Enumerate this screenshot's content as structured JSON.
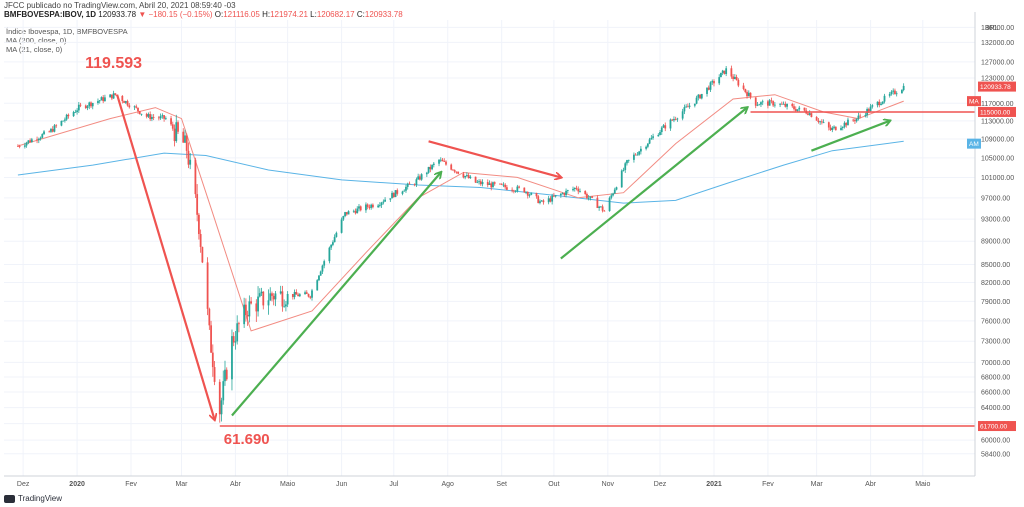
{
  "header": {
    "line1": "JFCC publicado no TradingView.com, Abril 20, 2021 08:59:40 -03",
    "symbol": "BMFBOVESPA:IBOV, 1D",
    "last": "120933.78",
    "arrow": "▼",
    "change": "−180.15 (−0.15%)",
    "o_label": "O:",
    "o_val": "121116.05",
    "h_label": "H:",
    "h_val": "121974.21",
    "l_label": "L:",
    "l_val": "120682.17",
    "c_label": "C:",
    "c_val": "120933.78"
  },
  "legend": {
    "title": "Índice Ibovespa, 1D, BMFBOVESPA",
    "ma1": "MA (200, close, 0)",
    "ma2": "MA (21, close, 0)"
  },
  "footer": {
    "brand": "TradingView"
  },
  "chart_data": {
    "type": "line",
    "title": "Índice Ibovespa, 1D, BMFBOVESPA",
    "y_unit": "BRL",
    "ylim": [
      57000,
      138000
    ],
    "y_ticks": [
      136000,
      132000,
      127000,
      123000,
      117000,
      113000,
      109000,
      105000,
      101000,
      97000,
      93000,
      89000,
      85000,
      82000,
      79000,
      76000,
      73000,
      70000,
      68000,
      66000,
      64000,
      62000,
      60000,
      58400
    ],
    "y_tick_labels": [
      "136000.00",
      "132000.00",
      "127000.00",
      "123000.00",
      "117000.00",
      "113000.00",
      "109000.00",
      "105000.00",
      "101000.00",
      "97000.00",
      "93000.00",
      "89000.00",
      "85000.00",
      "82000.00",
      "79000.00",
      "76000.00",
      "73000.00",
      "70000.00",
      "68000.00",
      "66000.00",
      "64000.00",
      "62000.00",
      "60000.00",
      "58400.00"
    ],
    "x_ticks": [
      "Dez",
      "2020",
      "Fev",
      "Mar",
      "Abr",
      "Maio",
      "Jun",
      "Jul",
      "Ago",
      "Set",
      "Out",
      "Nov",
      "Dez",
      "2021",
      "Fev",
      "Mar",
      "Abr",
      "Maio"
    ],
    "grid": true,
    "series": [
      {
        "name": "IBOV",
        "color_up": "#26a69a",
        "color_down": "#ef5350",
        "x": [
          "2019-11-28",
          "2019-12-16",
          "2020-01-02",
          "2020-01-23",
          "2020-02-10",
          "2020-02-21",
          "2020-03-04",
          "2020-03-11",
          "2020-03-17",
          "2020-03-23",
          "2020-03-30",
          "2020-04-08",
          "2020-04-22",
          "2020-05-14",
          "2020-06-03",
          "2020-06-22",
          "2020-07-13",
          "2020-07-27",
          "2020-08-17",
          "2020-09-14",
          "2020-09-24",
          "2020-10-14",
          "2020-10-30",
          "2020-11-12",
          "2020-11-30",
          "2020-12-21",
          "2021-01-08",
          "2021-01-25",
          "2021-02-05",
          "2021-02-24",
          "2021-03-09",
          "2021-03-24",
          "2021-04-05",
          "2021-04-20"
        ],
        "close": [
          107500,
          110500,
          116000,
          119000,
          114000,
          113500,
          107000,
          92000,
          74000,
          63600,
          73000,
          78000,
          80000,
          80000,
          94000,
          96000,
          100000,
          104500,
          100000,
          98500,
          96000,
          99000,
          94500,
          104000,
          110500,
          117500,
          125000,
          117000,
          117000,
          115000,
          111000,
          113500,
          117000,
          120933
        ]
      },
      {
        "name": "MA (21, close, 0)",
        "color": "#f28b82",
        "x": [
          "2019-11-28",
          "2020-01-20",
          "2020-02-15",
          "2020-03-01",
          "2020-03-18",
          "2020-04-10",
          "2020-05-15",
          "2020-06-15",
          "2020-07-15",
          "2020-08-10",
          "2020-09-10",
          "2020-10-15",
          "2020-11-10",
          "2020-12-10",
          "2021-01-12",
          "2021-02-05",
          "2021-03-05",
          "2021-03-25",
          "2021-04-20"
        ],
        "values": [
          107500,
          113500,
          116000,
          113500,
          95000,
          74500,
          77500,
          87000,
          97000,
          102000,
          101000,
          97000,
          98000,
          108000,
          118000,
          119000,
          115000,
          113500,
          117500
        ]
      },
      {
        "name": "MA (200, close, 0)",
        "color": "#5ab4e6",
        "x": [
          "2019-11-28",
          "2020-01-10",
          "2020-02-20",
          "2020-03-15",
          "2020-04-20",
          "2020-06-01",
          "2020-07-15",
          "2020-08-20",
          "2020-10-01",
          "2020-11-10",
          "2020-12-10",
          "2021-01-10",
          "2021-02-10",
          "2021-03-10",
          "2021-04-20"
        ],
        "values": [
          101500,
          103500,
          106000,
          105500,
          102500,
          100500,
          99500,
          99000,
          97500,
          96000,
          96500,
          100000,
          103500,
          106500,
          108500
        ]
      }
    ],
    "price_tags": [
      {
        "label": "120933.78",
        "value": 120933.78,
        "color": "#ef5350"
      },
      {
        "label": "MA",
        "value": 117500,
        "color": "#ef5350"
      },
      {
        "label": "115000.00",
        "value": 115000,
        "color": "#ef5350"
      },
      {
        "label": "AM",
        "value": 108000,
        "color": "#5ab4e6"
      },
      {
        "label": "61700.00",
        "value": 61700,
        "color": "#ef5350"
      }
    ],
    "annotations": [
      {
        "text": "119.593",
        "value": 119593,
        "date": "2020-01-24"
      },
      {
        "text": "61.690",
        "value": 61690,
        "date": "2020-03-23"
      }
    ],
    "horizontal_lines": [
      {
        "value": 61700,
        "from": "2020-03-23",
        "color": "#ef5350"
      },
      {
        "value": 115000,
        "from": "2021-01-22",
        "color": "#ef5350"
      }
    ],
    "trend_arrows": [
      {
        "from_date": "2020-01-24",
        "from_value": 119000,
        "to_date": "2020-03-20",
        "to_value": 62500,
        "color": "#ef5350"
      },
      {
        "from_date": "2020-03-30",
        "from_value": 63000,
        "to_date": "2020-07-28",
        "to_value": 102000,
        "color": "#4caf50"
      },
      {
        "from_date": "2020-07-21",
        "from_value": 108500,
        "to_date": "2020-10-05",
        "to_value": 101000,
        "color": "#ef5350"
      },
      {
        "from_date": "2020-10-05",
        "from_value": 86000,
        "to_date": "2021-01-20",
        "to_value": 116000,
        "color": "#4caf50"
      },
      {
        "from_date": "2021-02-26",
        "from_value": 106500,
        "to_date": "2021-04-12",
        "to_value": 113000,
        "color": "#4caf50"
      }
    ]
  }
}
